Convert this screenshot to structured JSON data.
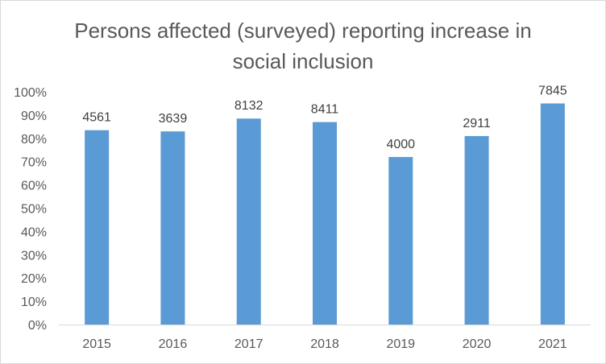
{
  "chart_data": {
    "type": "bar",
    "title": "Persons affected (surveyed) reporting increase in social inclusion",
    "xlabel": "",
    "ylabel": "",
    "categories": [
      "2015",
      "2016",
      "2017",
      "2018",
      "2019",
      "2020",
      "2021"
    ],
    "values": [
      83.5,
      83.0,
      88.5,
      87.0,
      72.0,
      81.0,
      95.0
    ],
    "data_labels": [
      "4561",
      "3639",
      "8132",
      "8411",
      "4000",
      "2911",
      "7845"
    ],
    "y_ticks": [
      "0%",
      "10%",
      "20%",
      "30%",
      "40%",
      "50%",
      "60%",
      "70%",
      "80%",
      "90%",
      "100%"
    ],
    "ylim": [
      0,
      100
    ],
    "grid": false,
    "legend": "none",
    "bar_color": "#5b9bd5",
    "axis_color": "#d9d9d9"
  }
}
